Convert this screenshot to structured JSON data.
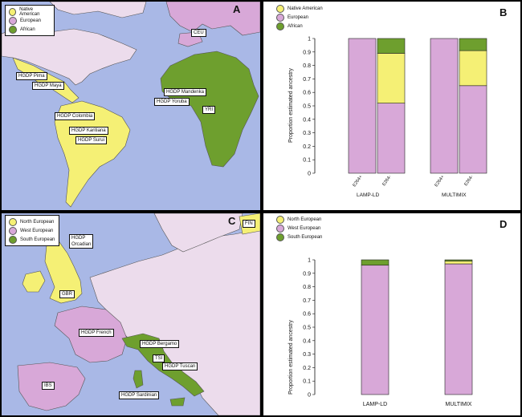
{
  "colors": {
    "yellow": "#f5f075",
    "pink": "#d8a8d8",
    "green": "#6e9f2e",
    "ocean": "#a9b8e6",
    "land": "#ecdcec"
  },
  "panels": {
    "A": {
      "letter": "A",
      "legend": [
        "Native American",
        "European",
        "African"
      ],
      "labels": [
        "CEU",
        "HGDP Pima",
        "HGDP Maya",
        "HGDP Mandenka",
        "HGDP Yoruba",
        "YRI",
        "HGDP Colombia",
        "HGDP Karitiana",
        "HGDP Surui"
      ]
    },
    "B": {
      "letter": "B"
    },
    "C": {
      "letter": "C",
      "legend": [
        "North European",
        "West European",
        "South European"
      ],
      "labels": [
        "HGDP Orcadian",
        "FIN",
        "GBR",
        "HGDP French",
        "HGDP Bergamo",
        "TSI",
        "HGDP Tuscan",
        "IBS",
        "HGDP Sardinian"
      ]
    },
    "D": {
      "letter": "D"
    }
  },
  "chart_data": [
    {
      "type": "bar",
      "stacked": true,
      "panel": "B",
      "ylabel": "Proportion estimated ancestry",
      "ylim": [
        0,
        1
      ],
      "yticks": [
        "0",
        "0.1",
        "0.2",
        "0.3",
        "0.4",
        "0.5",
        "0.6",
        "0.7",
        "0.8",
        "0.9",
        "1"
      ],
      "legend": [
        "Native American",
        "European",
        "African"
      ],
      "legend_position": "top-left",
      "groups": [
        "LAMP-LD",
        "MULTIMIX"
      ],
      "categories": [
        "E264+",
        "E264-",
        "E264+",
        "E264-"
      ],
      "series": [
        {
          "name": "European",
          "values": [
            1.0,
            0.52,
            1.0,
            0.65
          ]
        },
        {
          "name": "Native American",
          "values": [
            0.0,
            0.37,
            0.0,
            0.26
          ]
        },
        {
          "name": "African",
          "values": [
            0.0,
            0.11,
            0.0,
            0.09
          ]
        }
      ]
    },
    {
      "type": "bar",
      "stacked": true,
      "panel": "D",
      "ylabel": "Proportion estimated ancestry",
      "ylim": [
        0,
        1
      ],
      "yticks": [
        "0",
        "0.1",
        "0.2",
        "0.3",
        "0.4",
        "0.5",
        "0.6",
        "0.7",
        "0.8",
        "0.9",
        "1"
      ],
      "legend": [
        "North European",
        "West European",
        "South European"
      ],
      "legend_position": "top-left",
      "categories": [
        "LAMP-LD",
        "MULTIMIX"
      ],
      "series": [
        {
          "name": "West European",
          "values": [
            0.96,
            0.97
          ]
        },
        {
          "name": "North European",
          "values": [
            0.0,
            0.02
          ]
        },
        {
          "name": "South European",
          "values": [
            0.04,
            0.01
          ]
        }
      ]
    }
  ]
}
